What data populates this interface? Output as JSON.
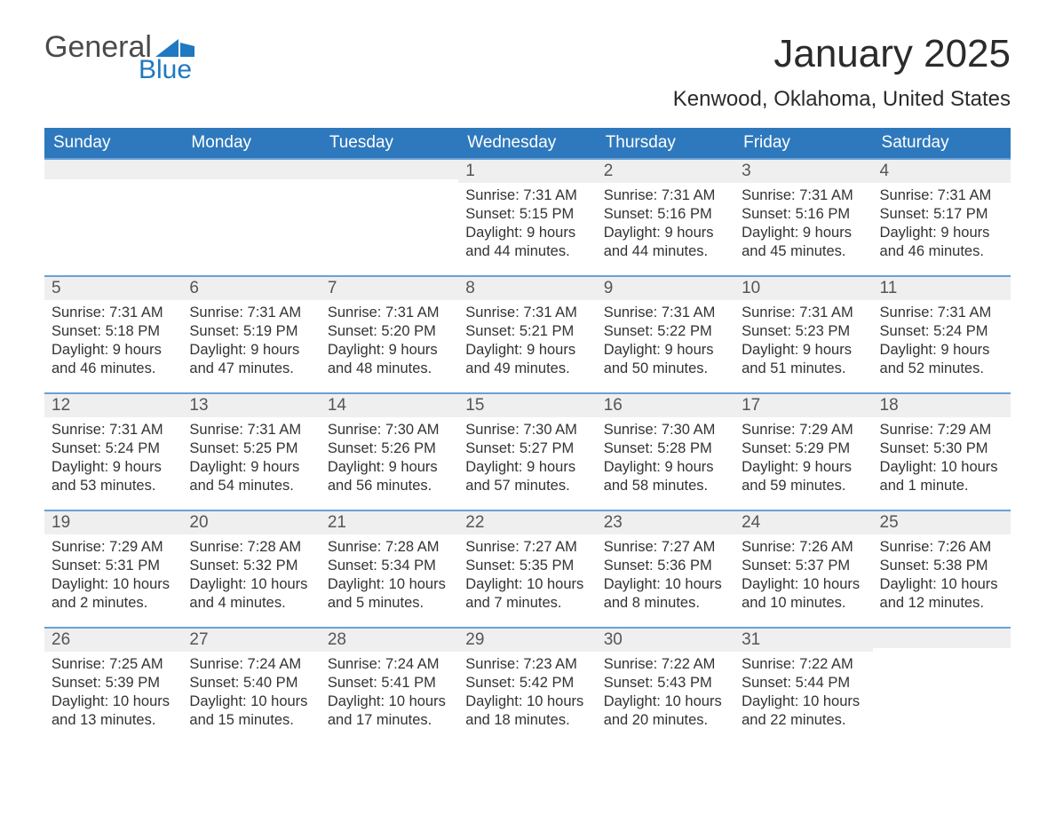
{
  "brand": {
    "word1": "General",
    "word2": "Blue"
  },
  "title": "January 2025",
  "location": "Kenwood, Oklahoma, United States",
  "colors": {
    "header_blue": "#2e79bd",
    "brand_gray": "#4a4a4a",
    "brand_blue": "#1f78c1",
    "row_border": "#6aa0d6",
    "day_bg": "#efefef",
    "text": "#333333",
    "background": "#ffffff"
  },
  "typography": {
    "month_title_fontsize": 44,
    "location_fontsize": 24,
    "weekday_header_fontsize": 19,
    "daynum_fontsize": 19,
    "body_fontsize": 16.5
  },
  "calendar": {
    "type": "table",
    "columns": [
      "Sunday",
      "Monday",
      "Tuesday",
      "Wednesday",
      "Thursday",
      "Friday",
      "Saturday"
    ],
    "leading_blanks": 3,
    "trailing_blanks": 1,
    "days": [
      {
        "n": 1,
        "sunrise": "7:31 AM",
        "sunset": "5:15 PM",
        "daylight": "9 hours and 44 minutes."
      },
      {
        "n": 2,
        "sunrise": "7:31 AM",
        "sunset": "5:16 PM",
        "daylight": "9 hours and 44 minutes."
      },
      {
        "n": 3,
        "sunrise": "7:31 AM",
        "sunset": "5:16 PM",
        "daylight": "9 hours and 45 minutes."
      },
      {
        "n": 4,
        "sunrise": "7:31 AM",
        "sunset": "5:17 PM",
        "daylight": "9 hours and 46 minutes."
      },
      {
        "n": 5,
        "sunrise": "7:31 AM",
        "sunset": "5:18 PM",
        "daylight": "9 hours and 46 minutes."
      },
      {
        "n": 6,
        "sunrise": "7:31 AM",
        "sunset": "5:19 PM",
        "daylight": "9 hours and 47 minutes."
      },
      {
        "n": 7,
        "sunrise": "7:31 AM",
        "sunset": "5:20 PM",
        "daylight": "9 hours and 48 minutes."
      },
      {
        "n": 8,
        "sunrise": "7:31 AM",
        "sunset": "5:21 PM",
        "daylight": "9 hours and 49 minutes."
      },
      {
        "n": 9,
        "sunrise": "7:31 AM",
        "sunset": "5:22 PM",
        "daylight": "9 hours and 50 minutes."
      },
      {
        "n": 10,
        "sunrise": "7:31 AM",
        "sunset": "5:23 PM",
        "daylight": "9 hours and 51 minutes."
      },
      {
        "n": 11,
        "sunrise": "7:31 AM",
        "sunset": "5:24 PM",
        "daylight": "9 hours and 52 minutes."
      },
      {
        "n": 12,
        "sunrise": "7:31 AM",
        "sunset": "5:24 PM",
        "daylight": "9 hours and 53 minutes."
      },
      {
        "n": 13,
        "sunrise": "7:31 AM",
        "sunset": "5:25 PM",
        "daylight": "9 hours and 54 minutes."
      },
      {
        "n": 14,
        "sunrise": "7:30 AM",
        "sunset": "5:26 PM",
        "daylight": "9 hours and 56 minutes."
      },
      {
        "n": 15,
        "sunrise": "7:30 AM",
        "sunset": "5:27 PM",
        "daylight": "9 hours and 57 minutes."
      },
      {
        "n": 16,
        "sunrise": "7:30 AM",
        "sunset": "5:28 PM",
        "daylight": "9 hours and 58 minutes."
      },
      {
        "n": 17,
        "sunrise": "7:29 AM",
        "sunset": "5:29 PM",
        "daylight": "9 hours and 59 minutes."
      },
      {
        "n": 18,
        "sunrise": "7:29 AM",
        "sunset": "5:30 PM",
        "daylight": "10 hours and 1 minute."
      },
      {
        "n": 19,
        "sunrise": "7:29 AM",
        "sunset": "5:31 PM",
        "daylight": "10 hours and 2 minutes."
      },
      {
        "n": 20,
        "sunrise": "7:28 AM",
        "sunset": "5:32 PM",
        "daylight": "10 hours and 4 minutes."
      },
      {
        "n": 21,
        "sunrise": "7:28 AM",
        "sunset": "5:34 PM",
        "daylight": "10 hours and 5 minutes."
      },
      {
        "n": 22,
        "sunrise": "7:27 AM",
        "sunset": "5:35 PM",
        "daylight": "10 hours and 7 minutes."
      },
      {
        "n": 23,
        "sunrise": "7:27 AM",
        "sunset": "5:36 PM",
        "daylight": "10 hours and 8 minutes."
      },
      {
        "n": 24,
        "sunrise": "7:26 AM",
        "sunset": "5:37 PM",
        "daylight": "10 hours and 10 minutes."
      },
      {
        "n": 25,
        "sunrise": "7:26 AM",
        "sunset": "5:38 PM",
        "daylight": "10 hours and 12 minutes."
      },
      {
        "n": 26,
        "sunrise": "7:25 AM",
        "sunset": "5:39 PM",
        "daylight": "10 hours and 13 minutes."
      },
      {
        "n": 27,
        "sunrise": "7:24 AM",
        "sunset": "5:40 PM",
        "daylight": "10 hours and 15 minutes."
      },
      {
        "n": 28,
        "sunrise": "7:24 AM",
        "sunset": "5:41 PM",
        "daylight": "10 hours and 17 minutes."
      },
      {
        "n": 29,
        "sunrise": "7:23 AM",
        "sunset": "5:42 PM",
        "daylight": "10 hours and 18 minutes."
      },
      {
        "n": 30,
        "sunrise": "7:22 AM",
        "sunset": "5:43 PM",
        "daylight": "10 hours and 20 minutes."
      },
      {
        "n": 31,
        "sunrise": "7:22 AM",
        "sunset": "5:44 PM",
        "daylight": "10 hours and 22 minutes."
      }
    ],
    "labels": {
      "sunrise": "Sunrise:",
      "sunset": "Sunset:",
      "daylight": "Daylight:"
    }
  }
}
